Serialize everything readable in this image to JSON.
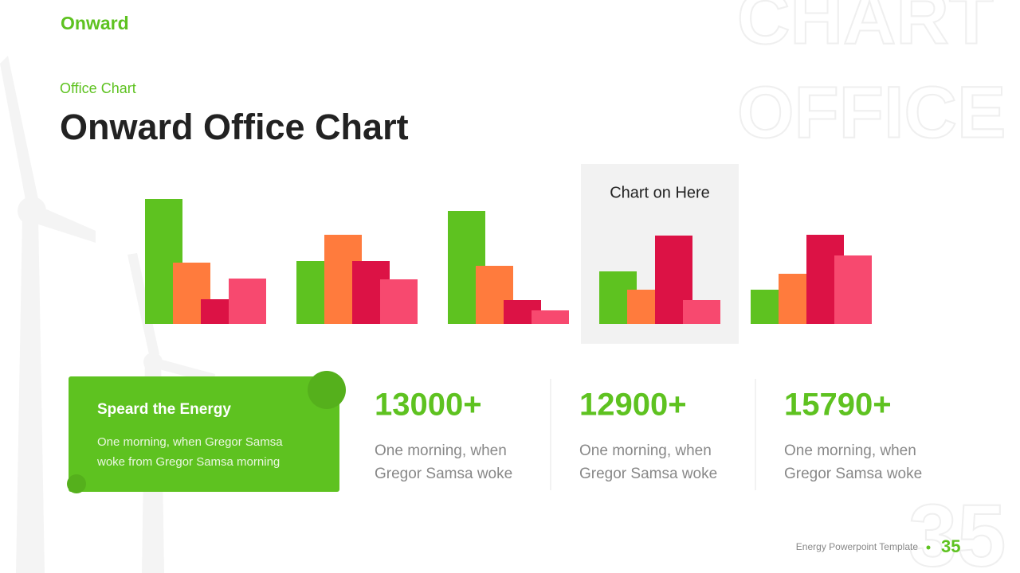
{
  "header": {
    "logo": "Onward",
    "subtitle": "Office Chart",
    "title": "Onward Office Chart"
  },
  "watermark": {
    "line1": "CHART",
    "line2": "OFFICE",
    "page": "35"
  },
  "chart_data": {
    "type": "bar",
    "categories": [
      null,
      null,
      null,
      null,
      null
    ],
    "series": [
      {
        "color": "#5ec220",
        "values": [
          157,
          79,
          142,
          66,
          43
        ]
      },
      {
        "color": "#ff7b3d",
        "values": [
          77,
          112,
          73,
          43,
          63
        ]
      },
      {
        "color": "#dc1245",
        "values": [
          31,
          79,
          30,
          111,
          112
        ]
      },
      {
        "color": "#f7496f",
        "values": [
          57,
          56,
          17,
          30,
          86
        ]
      }
    ],
    "ylim": [
      0,
      160
    ],
    "highlight": 3,
    "note": "Chart on Here"
  },
  "card": {
    "title": "Speard the Energy",
    "lines": [
      "One morning, when Gregor Samsa",
      "woke from Gregor Samsa morning"
    ]
  },
  "stats": [
    {
      "value": "13000+",
      "lines": [
        "One morning, when",
        "Gregor Samsa woke"
      ]
    },
    {
      "value": "12900+",
      "lines": [
        "One morning, when",
        "Gregor Samsa woke"
      ]
    },
    {
      "value": "15790+",
      "lines": [
        "One morning, when",
        "Gregor Samsa woke"
      ]
    }
  ],
  "footer": {
    "text": "Energy Powerpoint  Template",
    "page": "35"
  }
}
